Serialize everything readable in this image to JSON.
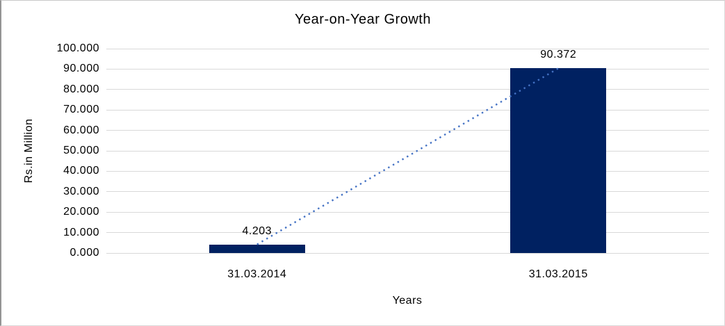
{
  "chart_data": {
    "type": "bar",
    "title": "Year-on-Year Growth",
    "xlabel": "Years",
    "ylabel": "Rs.in Million",
    "categories": [
      "31.03.2014",
      "31.03.2015"
    ],
    "values": [
      4.203,
      90.372
    ],
    "data_labels": [
      "4.203",
      "90.372"
    ],
    "ylim": [
      0,
      100
    ],
    "ytick_step": 10,
    "ytick_labels": [
      "100.000",
      "90.000",
      "80.000",
      "70.000",
      "60.000",
      "50.000",
      "40.000",
      "30.000",
      "20.000",
      "10.000",
      "0.000"
    ],
    "grid": true,
    "legend_position": "none",
    "bar_color": "#002161",
    "gridline_color": "#d9d9d9",
    "text_color": "#000000",
    "background_color": "#ffffff",
    "trendline": {
      "type": "linear",
      "style": "dotted",
      "color": "#4472c4"
    }
  }
}
